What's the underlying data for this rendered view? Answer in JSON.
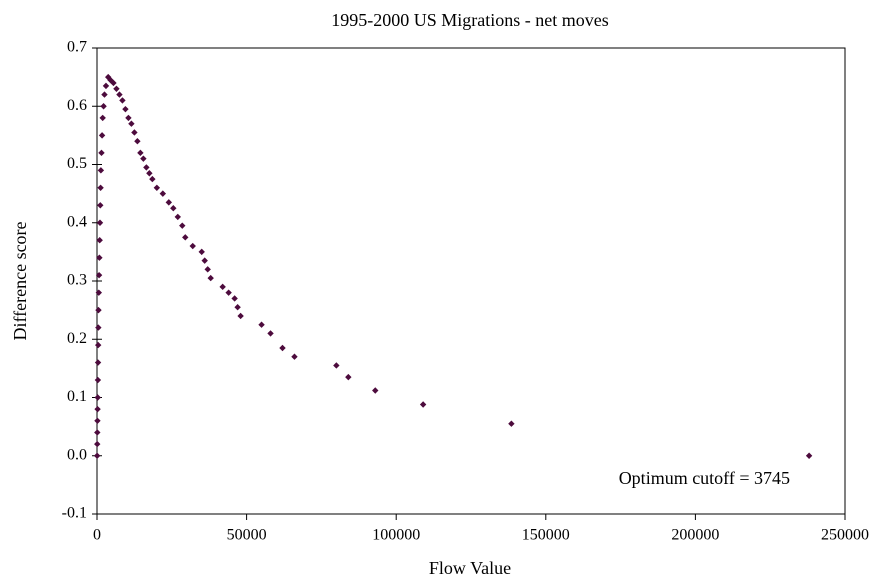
{
  "chart_data": {
    "type": "scatter",
    "title": "1995-2000 US Migrations - net moves",
    "xlabel": "Flow Value",
    "ylabel": "Difference score",
    "annotation": "Optimum cutoff = 3745",
    "color": "#4d0b3d",
    "xlim": [
      0,
      250000
    ],
    "ylim": [
      -0.1,
      0.7
    ],
    "xticks": [
      0,
      50000,
      100000,
      150000,
      200000,
      250000
    ],
    "yticks": [
      -0.1,
      {
        "value": 0,
        "label": "0.0"
      },
      0.1,
      0.2,
      0.3,
      0.4,
      0.5,
      0.6,
      0.7
    ],
    "grid": false,
    "series": [
      {
        "name": "net moves",
        "color": "#4d0b3d",
        "x": [
          50,
          80,
          100,
          150,
          200,
          250,
          300,
          350,
          400,
          450,
          500,
          600,
          700,
          800,
          900,
          1000,
          1100,
          1200,
          1300,
          1500,
          1700,
          1900,
          2200,
          2500,
          3000,
          3745,
          4500,
          5500,
          6500,
          7500,
          8500,
          9500,
          10500,
          11500,
          12500,
          13500,
          14500,
          15500,
          16500,
          17500,
          18500,
          20000,
          22000,
          24000,
          25500,
          27000,
          28500,
          29500,
          32000,
          35000,
          36000,
          37000,
          38000,
          42000,
          44000,
          46000,
          47000,
          48000,
          55000,
          58000,
          62000,
          66000,
          80000,
          84000,
          93000,
          109000,
          138500,
          238000
        ],
        "values": [
          0.0,
          0.02,
          0.04,
          0.06,
          0.08,
          0.1,
          0.13,
          0.16,
          0.19,
          0.22,
          0.25,
          0.28,
          0.31,
          0.34,
          0.37,
          0.4,
          0.43,
          0.46,
          0.49,
          0.52,
          0.55,
          0.58,
          0.6,
          0.62,
          0.635,
          0.65,
          0.645,
          0.64,
          0.63,
          0.62,
          0.61,
          0.595,
          0.58,
          0.57,
          0.555,
          0.54,
          0.52,
          0.51,
          0.495,
          0.485,
          0.475,
          0.46,
          0.45,
          0.435,
          0.425,
          0.41,
          0.395,
          0.375,
          0.36,
          0.35,
          0.335,
          0.32,
          0.305,
          0.29,
          0.28,
          0.27,
          0.255,
          0.24,
          0.225,
          0.21,
          0.185,
          0.17,
          0.155,
          0.135,
          0.112,
          0.088,
          0.055,
          0.0
        ]
      }
    ]
  }
}
